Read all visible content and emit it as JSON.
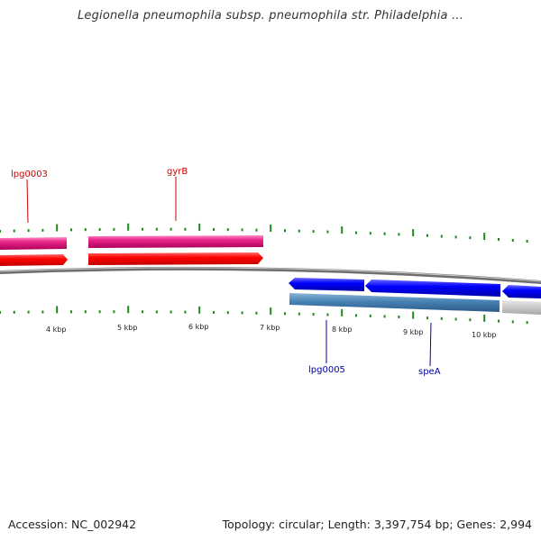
{
  "title": "Legionella pneumophila subsp. pneumophila str. Philadelphia ...",
  "colors": {
    "plus_cds": "#e8288a",
    "plus_cds_light": "#ff6fb8",
    "plus_cds_dark": "#b0005a",
    "red_track": "#ff0000",
    "red_track_dark": "#c80000",
    "minus_cds": "#0000ff",
    "minus_cds_dark": "#0000aa",
    "steel_track": "#4682b4",
    "grey_track": "#c8c8c8",
    "tick": "#1a8a1a",
    "backbone": "#888888",
    "label_red": "#cc0000",
    "label_blue": "#0000aa"
  },
  "scale_labels": [
    "4 kbp",
    "5 kbp",
    "6 kbp",
    "7 kbp",
    "8 kbp",
    "9 kbp",
    "10 kbp"
  ],
  "gene_labels": [
    "lpg0003",
    "gyrB",
    "lpg0005",
    "speA"
  ],
  "footer": {
    "accession": "Accession: NC_002942",
    "summary": "Topology: circular; Length: 3,397,754 bp; Genes: 2,994"
  }
}
